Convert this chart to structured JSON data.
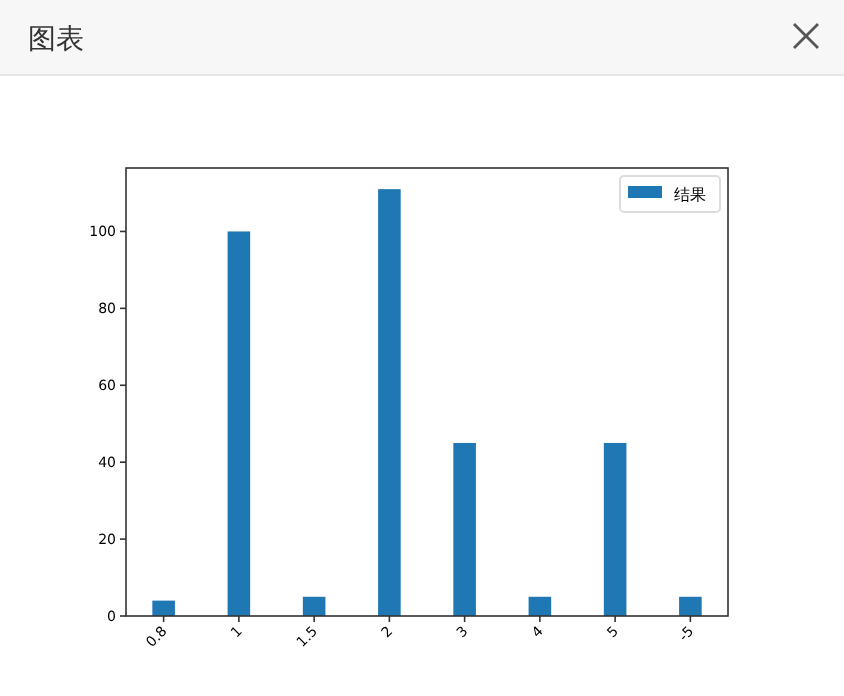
{
  "chart_data": {
    "type": "bar",
    "title": "图表",
    "categories": [
      "0.8",
      "1",
      "1.5",
      "2",
      "3",
      "4",
      "5",
      "-5"
    ],
    "series": [
      {
        "name": "结果",
        "color": "#1f77b4",
        "values": [
          4,
          100,
          5,
          111,
          45,
          5,
          45,
          5
        ]
      }
    ],
    "ylim": [
      0,
      116.5
    ],
    "yticks": [
      0,
      20,
      40,
      60,
      80,
      100
    ],
    "legend": "top right"
  }
}
